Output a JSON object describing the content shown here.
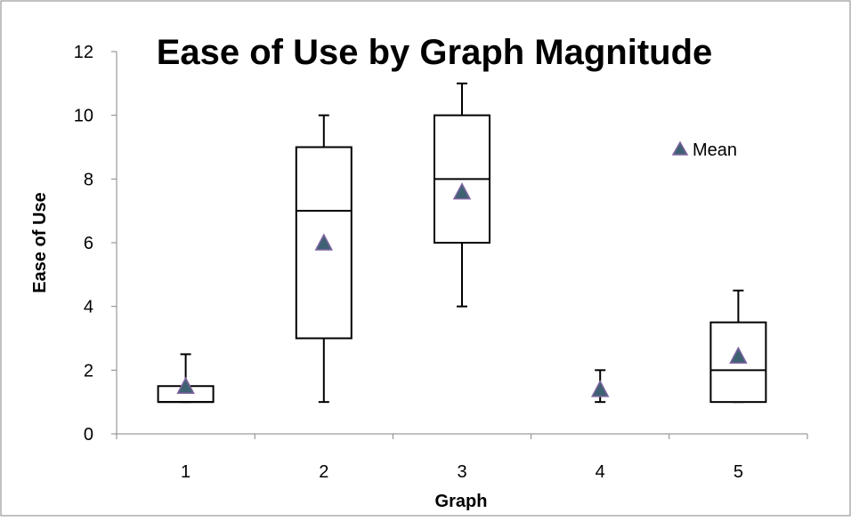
{
  "chart_data": {
    "type": "box",
    "title": "Ease of Use by Graph Magnitude",
    "xlabel": "Graph",
    "ylabel": "Ease of Use",
    "categories": [
      "1",
      "2",
      "3",
      "4",
      "5"
    ],
    "ylim": [
      0,
      12
    ],
    "yticks": [
      "0",
      "2",
      "4",
      "6",
      "8",
      "10",
      "12"
    ],
    "grid": false,
    "legend": {
      "position": "top-right",
      "entries": [
        "Mean"
      ]
    },
    "series": [
      {
        "name": "Mean",
        "mean": [
          1.5,
          6.0,
          7.6,
          1.4,
          2.45
        ]
      }
    ],
    "boxes": [
      {
        "category": "1",
        "min": 1,
        "q1": 1,
        "median": 1,
        "q3": 1.5,
        "max": 2.5
      },
      {
        "category": "2",
        "min": 1,
        "q1": 3,
        "median": 7,
        "q3": 9,
        "max": 10
      },
      {
        "category": "3",
        "min": 4,
        "q1": 6,
        "median": 8,
        "q3": 10,
        "max": 11
      },
      {
        "category": "4",
        "min": 1,
        "q1": 1,
        "median": 1,
        "q3": 1,
        "max": 2
      },
      {
        "category": "5",
        "min": 1,
        "q1": 1,
        "median": 2,
        "q3": 3.5,
        "max": 4.5
      }
    ],
    "colors": {
      "mean_fill": "#3f6273",
      "mean_stroke": "#8064a2",
      "box_stroke": "#000000",
      "axis": "#868686"
    }
  }
}
